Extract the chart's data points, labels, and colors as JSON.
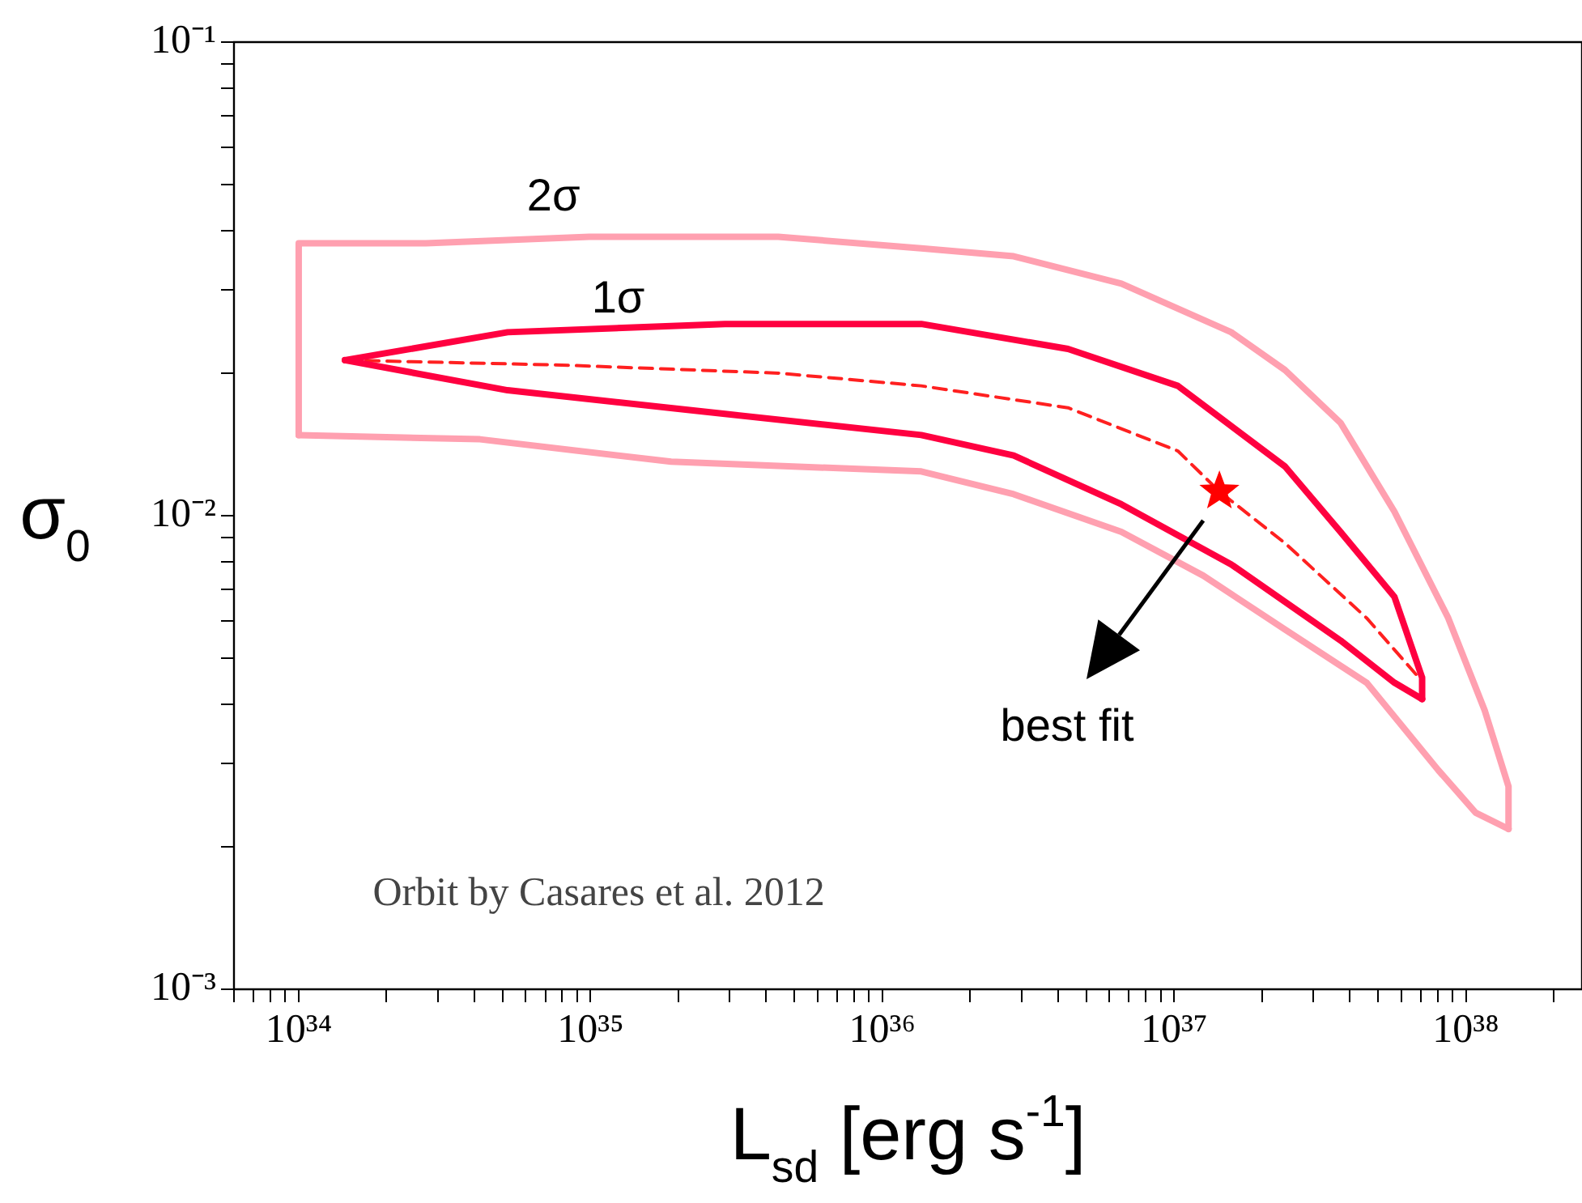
{
  "chart_data": {
    "type": "line",
    "xlabel": "L$_{sd}$ [erg s$^{-1}$]",
    "ylabel": "σ$_{0}$",
    "log": "xy",
    "legend": false,
    "xlim": [
      6e+33,
      2.5e+38
    ],
    "xticks": [
      {
        "value": 6e+33,
        "label": null
      },
      {
        "value": 7e+33,
        "label": null
      },
      {
        "value": 8e+33,
        "label": null
      },
      {
        "value": 9e+33,
        "label": null
      },
      {
        "value": 1e+34,
        "label": "10³⁴"
      },
      {
        "value": 2e+34,
        "label": null
      },
      {
        "value": 3e+34,
        "label": null
      },
      {
        "value": 4e+34,
        "label": null
      },
      {
        "value": 5e+34,
        "label": null
      },
      {
        "value": 6e+34,
        "label": null
      },
      {
        "value": 7e+34,
        "label": null
      },
      {
        "value": 8e+34,
        "label": null
      },
      {
        "value": 9e+34,
        "label": null
      },
      {
        "value": 1e+35,
        "label": "10³⁵"
      },
      {
        "value": 2e+35,
        "label": null
      },
      {
        "value": 3e+35,
        "label": null
      },
      {
        "value": 4e+35,
        "label": null
      },
      {
        "value": 5e+35,
        "label": null
      },
      {
        "value": 6e+35,
        "label": null
      },
      {
        "value": 7e+35,
        "label": null
      },
      {
        "value": 8e+35,
        "label": null
      },
      {
        "value": 9e+35,
        "label": null
      },
      {
        "value": 1e+36,
        "label": "10³⁶"
      },
      {
        "value": 2e+36,
        "label": null
      },
      {
        "value": 3e+36,
        "label": null
      },
      {
        "value": 4e+36,
        "label": null
      },
      {
        "value": 5e+36,
        "label": null
      },
      {
        "value": 6e+36,
        "label": null
      },
      {
        "value": 7e+36,
        "label": null
      },
      {
        "value": 8e+36,
        "label": null
      },
      {
        "value": 9e+36,
        "label": null
      },
      {
        "value": 1e+37,
        "label": "10³⁷"
      },
      {
        "value": 2e+37,
        "label": null
      },
      {
        "value": 3e+37,
        "label": null
      },
      {
        "value": 4e+37,
        "label": null
      },
      {
        "value": 5e+37,
        "label": null
      },
      {
        "value": 6e+37,
        "label": null
      },
      {
        "value": 7e+37,
        "label": null
      },
      {
        "value": 8e+37,
        "label": null
      },
      {
        "value": 9e+37,
        "label": null
      },
      {
        "value": 1e+38,
        "label": "10³⁸"
      },
      {
        "value": 2e+38,
        "label": null
      }
    ],
    "ylim": [
      0.001,
      0.1
    ],
    "yticks": [
      {
        "value": 0.001,
        "label": "10⁻³"
      },
      {
        "value": 0.002,
        "label": null
      },
      {
        "value": 0.003,
        "label": null
      },
      {
        "value": 0.004,
        "label": null
      },
      {
        "value": 0.005,
        "label": null
      },
      {
        "value": 0.006,
        "label": null
      },
      {
        "value": 0.007,
        "label": null
      },
      {
        "value": 0.008,
        "label": null
      },
      {
        "value": 0.009,
        "label": null
      },
      {
        "value": 0.01,
        "label": "10⁻²"
      },
      {
        "value": 0.02,
        "label": null
      },
      {
        "value": 0.03,
        "label": null
      },
      {
        "value": 0.04,
        "label": null
      },
      {
        "value": 0.05,
        "label": null
      },
      {
        "value": 0.06,
        "label": null
      },
      {
        "value": 0.07,
        "label": null
      },
      {
        "value": 0.08,
        "label": null
      },
      {
        "value": 0.09,
        "label": null
      },
      {
        "value": 0.1,
        "label": "10⁻¹"
      }
    ],
    "series": [
      {
        "type": "line",
        "color": "#ffa0b0",
        "line_style": "solid",
        "marker": "none",
        "x": [
          1e+34,
          1e+34,
          2.73e+34,
          9.9e+34,
          4.4e+35,
          1.36e+36,
          2.82e+36,
          6.6e+36,
          1.57e+37,
          2.4e+37,
          3.72e+37,
          5.69e+37,
          8.7e+37,
          1.16e+38,
          1.4e+38,
          1.4e+38
        ],
        "values": [
          0.0148,
          0.0376,
          0.0376,
          0.0388,
          0.0388,
          0.0367,
          0.0353,
          0.0309,
          0.0244,
          0.0203,
          0.0157,
          0.0102,
          0.00608,
          0.00388,
          0.00268,
          0.00218
        ]
      },
      {
        "type": "line",
        "color": "#ffa0b0",
        "line_style": "solid",
        "marker": "none",
        "x": [
          1e+34,
          4.18e+34,
          1.89e+35,
          1.36e+36,
          2.82e+36,
          6.6e+36,
          1.26e+37,
          2.4e+37,
          4.57e+37,
          8.05e+37,
          1.08e+38,
          1.4e+38
        ],
        "values": [
          0.0148,
          0.0145,
          0.013,
          0.0124,
          0.0111,
          0.00924,
          0.00747,
          0.00575,
          0.00444,
          0.0029,
          0.00236,
          0.00218
        ]
      },
      {
        "type": "line",
        "color": "#ff0040",
        "line_style": "solid",
        "marker": "none",
        "x": [
          1.44e+34,
          5.2e+34,
          2.89e+35,
          1.36e+36,
          4.33e+36,
          1.03e+37,
          2.4e+37,
          3.72e+37,
          5.69e+37,
          7.08e+37,
          7.08e+37
        ],
        "values": [
          0.0213,
          0.0244,
          0.0254,
          0.0254,
          0.0225,
          0.0188,
          0.0127,
          0.00924,
          0.00674,
          0.00455,
          0.0041
        ]
      },
      {
        "color": "#ff0040",
        "line_style": "solid",
        "marker": "none",
        "x": [
          1.44e+34,
          5.2e+34,
          2.89e+35,
          1.36e+36,
          2.82e+36,
          6.6e+36,
          1.57e+37,
          3.72e+37,
          5.69e+37,
          7.08e+37
        ],
        "values": [
          0.0213,
          0.0184,
          0.0164,
          0.0148,
          0.0134,
          0.01057,
          0.00789,
          0.00545,
          0.00444,
          0.0041
        ]
      },
      {
        "color": "#ff2020",
        "line_style": "dashed",
        "marker": "none",
        "x": [
          1.44e+34,
          7.96e+34,
          4.4e+35,
          1.36e+36,
          4.33e+36,
          1.03e+37,
          1.43e+37,
          2.4e+37,
          4.57e+37,
          6.9e+37
        ],
        "values": [
          0.0213,
          0.0208,
          0.02,
          0.0188,
          0.0169,
          0.0137,
          0.01125,
          0.00875,
          0.00608,
          0.00455
        ]
      },
      {
        "type": "scatter",
        "color": "#ff0000",
        "marker": "star",
        "x": [
          1.43e+37
        ],
        "values": [
          0.01125
        ]
      }
    ],
    "annotations": [
      "2σ",
      "1σ",
      "best fit",
      "Orbit by Casares et al. 2012"
    ]
  }
}
